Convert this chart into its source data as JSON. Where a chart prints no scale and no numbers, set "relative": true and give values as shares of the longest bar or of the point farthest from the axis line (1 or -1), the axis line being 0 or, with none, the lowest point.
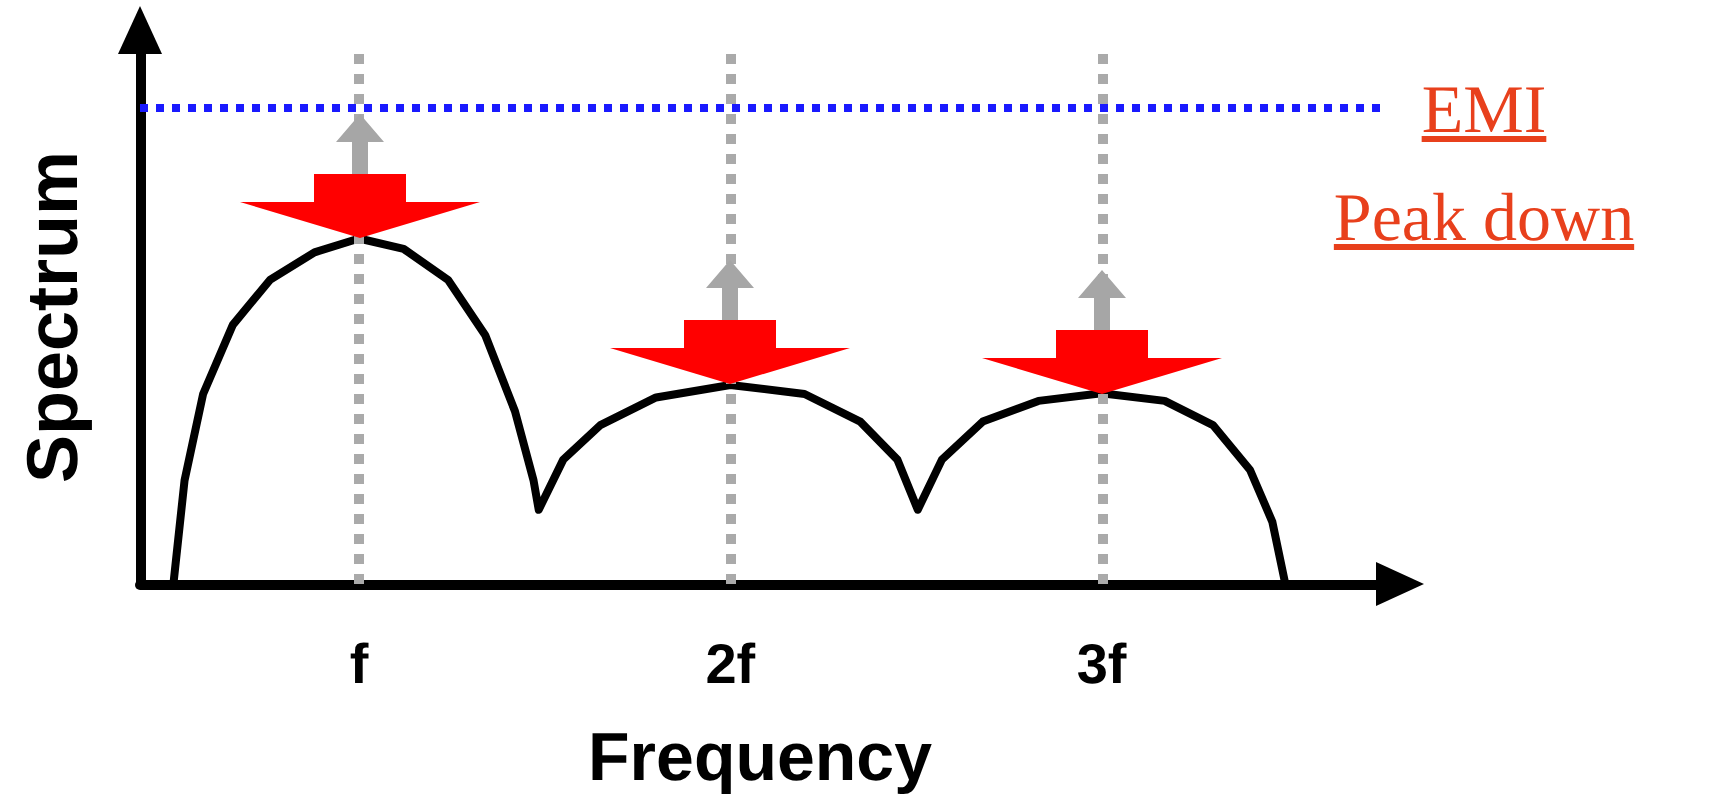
{
  "chart_data": {
    "type": "line",
    "relative": true,
    "xlabel": "Frequency",
    "ylabel": "Spectrum",
    "xlim": [
      0.41,
      3.75
    ],
    "xticks": [
      {
        "value": 1,
        "label": "f"
      },
      {
        "value": 2,
        "label": "2f"
      },
      {
        "value": 3,
        "label": "3f"
      }
    ],
    "series": [
      {
        "color": "#000000",
        "x": [
          0.5,
          0.53,
          0.58,
          0.66,
          0.76,
          0.88,
          1.0,
          1.12,
          1.24,
          1.34,
          1.42,
          1.47,
          1.484,
          1.55,
          1.65,
          1.8,
          2.0,
          2.2,
          2.35,
          2.45,
          2.505,
          2.57,
          2.68,
          2.83,
          3.0,
          3.17,
          3.3,
          3.4,
          3.46,
          3.495
        ],
        "values": [
          0,
          0.3,
          0.55,
          0.75,
          0.88,
          0.96,
          1.0,
          0.97,
          0.88,
          0.72,
          0.5,
          0.3,
          0.215,
          0.36,
          0.46,
          0.54,
          0.576,
          0.55,
          0.47,
          0.36,
          0.215,
          0.36,
          0.47,
          0.53,
          0.552,
          0.53,
          0.46,
          0.33,
          0.18,
          0
        ]
      }
    ],
    "ref_lines": [
      {
        "axis": "y",
        "value": 1.38,
        "color": "#1a1aff",
        "line_style": "dotted"
      },
      {
        "axis": "x",
        "value": 1,
        "color": "#aaaaaa",
        "line_style": "dotted"
      },
      {
        "axis": "x",
        "value": 2,
        "color": "#aaaaaa",
        "line_style": "dotted"
      },
      {
        "axis": "x",
        "value": 3,
        "color": "#aaaaaa",
        "line_style": "dotted"
      }
    ],
    "annotations": [
      "EMI",
      "Peak down"
    ],
    "marker": "none",
    "line_style": "solid",
    "grid": false
  }
}
